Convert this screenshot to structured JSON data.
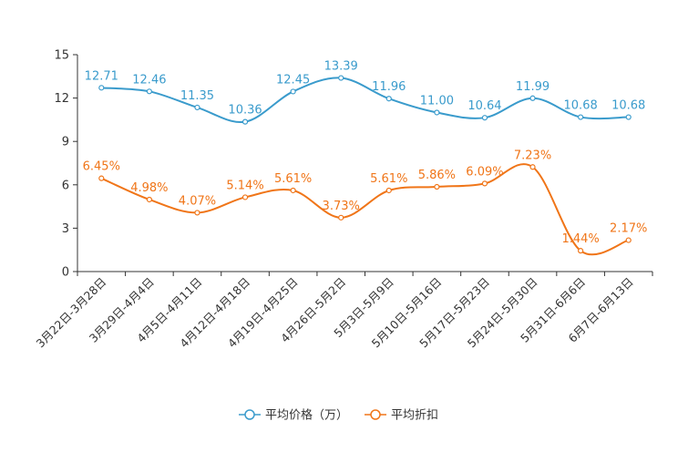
{
  "chart_data": {
    "type": "line",
    "categories": [
      "3月22日-3月28日",
      "3月29日-4月4日",
      "4月5日-4月11日",
      "4月12日-4月18日",
      "4月19日-4月25日",
      "4月26日-5月2日",
      "5月3日-5月9日",
      "5月10日-5月16日",
      "5月17日-5月23日",
      "5月24日-5月30日",
      "5月31日-6月6日",
      "6月7日-6月13日"
    ],
    "ylim": [
      0,
      15
    ],
    "yticks": [
      0,
      3,
      6,
      9,
      12,
      15
    ],
    "series": [
      {
        "name": "平均价格（万）",
        "color": "#3a9bcc",
        "values": [
          12.71,
          12.46,
          11.35,
          10.36,
          12.45,
          13.39,
          11.96,
          11.0,
          10.64,
          11.99,
          10.68,
          10.68
        ],
        "labels": [
          "12.71",
          "12.46",
          "11.35",
          "10.36",
          "12.45",
          "13.39",
          "11.96",
          "11.00",
          "10.64",
          "11.99",
          "10.68",
          "10.68"
        ]
      },
      {
        "name": "平均折扣",
        "color": "#f07518",
        "values": [
          6.45,
          4.98,
          4.07,
          5.14,
          5.61,
          3.73,
          5.61,
          5.86,
          6.09,
          7.23,
          1.44,
          2.17
        ],
        "labels": [
          "6.45%",
          "4.98%",
          "4.07%",
          "5.14%",
          "5.61%",
          "3.73%",
          "5.61%",
          "5.86%",
          "6.09%",
          "7.23%",
          "1.44%",
          "2.17%"
        ]
      }
    ],
    "legend": [
      "平均价格（万）",
      "平均折扣"
    ],
    "legend_position": "bottom-center",
    "grid": false
  }
}
